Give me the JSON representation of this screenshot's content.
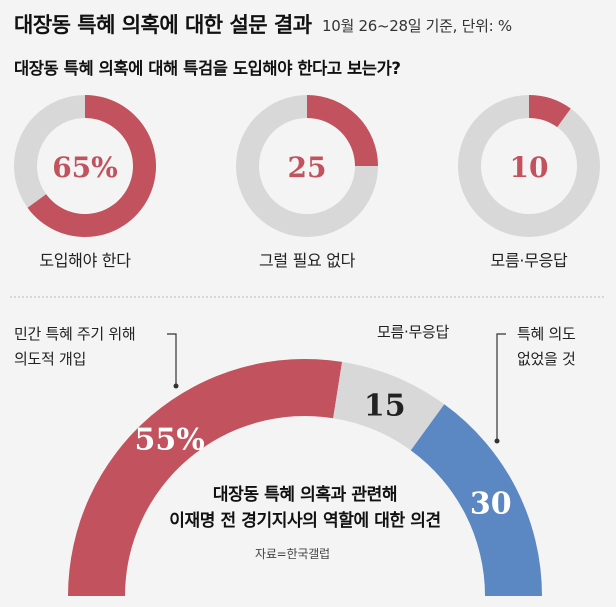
{
  "header": {
    "title": "대장동 특혜 의혹에 대한 설문 결과",
    "meta": "10월 26~28일 기준, 단위: %"
  },
  "question": "대장동 특혜 의혹에 대해 특검을 도입해야 한다고 보는가?",
  "colors": {
    "red": "#c2525d",
    "blue": "#5b87c2",
    "gray": "#d8d8d8",
    "line": "#bdbdbd"
  },
  "chart_data": [
    {
      "type": "pie",
      "subtype": "donut-row",
      "items": [
        {
          "label": "도입해야 한다",
          "value": 65,
          "display": "65%"
        },
        {
          "label": "그럴 필요 없다",
          "value": 25,
          "display": "25"
        },
        {
          "label": "모름·무응답",
          "value": 10,
          "display": "10"
        }
      ]
    },
    {
      "type": "pie",
      "subtype": "half-donut",
      "caption_line1": "대장동 특혜 의혹과 관련해",
      "caption_line2": "이재명 전 경기지사의 역할에 대한 의견",
      "segments": [
        {
          "label_line1": "민간 특혜 주기 위해",
          "label_line2": "의도적 개입",
          "value": 55,
          "display": "55%",
          "color": "#c2525d"
        },
        {
          "label_line1": "모름·무응답",
          "label_line2": "",
          "value": 15,
          "display": "15",
          "color": "#d8d8d8"
        },
        {
          "label_line1": "특혜 의도",
          "label_line2": "없었을 것",
          "value": 30,
          "display": "30",
          "color": "#5b87c2"
        }
      ]
    }
  ],
  "source": "자료=한국갤럽"
}
